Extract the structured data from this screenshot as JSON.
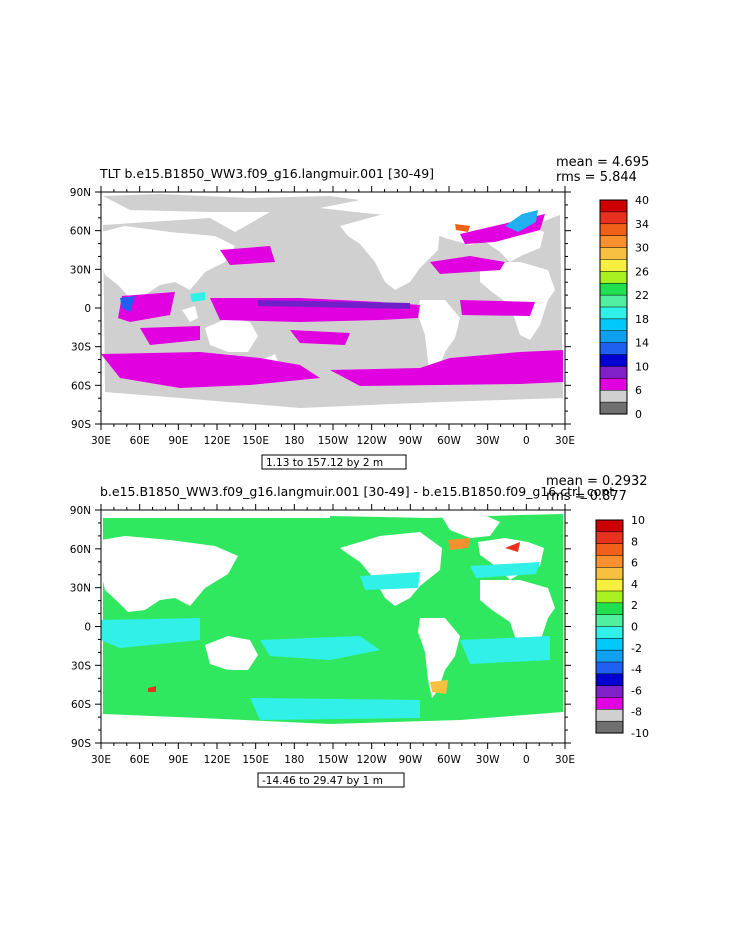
{
  "chart_data": [
    {
      "type": "heatmap",
      "title": "TLT b.e15.B1850_WW3.f09_g16.langmuir.001 [30-49]",
      "stats": {
        "mean": "mean = 4.695",
        "rms": "rms = 5.844"
      },
      "lon_ticks": [
        "30E",
        "60E",
        "90E",
        "120E",
        "150E",
        "180",
        "150W",
        "120W",
        "90W",
        "60W",
        "30W",
        "0",
        "30E"
      ],
      "lat_ticks": [
        "90N",
        "60N",
        "30N",
        "0",
        "30S",
        "60S",
        "90S"
      ],
      "lat_values": [
        90,
        60,
        30,
        0,
        -30,
        -60,
        -90
      ],
      "colorbar": {
        "labels": [
          "40",
          "34",
          "30",
          "26",
          "22",
          "18",
          "14",
          "10",
          "6",
          "0"
        ],
        "colors": [
          "#cc0000",
          "#e83220",
          "#f06018",
          "#f89030",
          "#f8c040",
          "#f8f040",
          "#a8f020",
          "#20e050",
          "#50f0a0",
          "#30f0e8",
          "#00c8f8",
          "#10a0f0",
          "#2060f0",
          "#0000d0",
          "#8020c8",
          "#e000e0",
          "#d0d0d0",
          "#707070"
        ]
      },
      "contour_info": "1.13 to 157.12 by 2 m",
      "land_color": "#ffffff",
      "ice_color": "#d0d0d0"
    },
    {
      "type": "heatmap",
      "title": "b.e15.B1850_WW3.f09_g16.langmuir.001 [30-49] - b.e15.B1850.f09_g16.ctrl_cont",
      "stats": {
        "mean": "mean = 0.2932",
        "rms": "rms = 0.877"
      },
      "lon_ticks": [
        "30E",
        "60E",
        "90E",
        "120E",
        "150E",
        "180",
        "150W",
        "120W",
        "90W",
        "60W",
        "30W",
        "0",
        "30E"
      ],
      "lat_ticks": [
        "90N",
        "60N",
        "30N",
        "0",
        "30S",
        "60S",
        "90S"
      ],
      "lat_values": [
        90,
        60,
        30,
        0,
        -30,
        -60,
        -90
      ],
      "colorbar": {
        "labels": [
          "10",
          "8",
          "6",
          "4",
          "2",
          "0",
          "-2",
          "-4",
          "-6",
          "-8",
          "-10"
        ],
        "colors": [
          "#cc0000",
          "#e83220",
          "#f06018",
          "#f89030",
          "#f8c040",
          "#f8f040",
          "#a8f020",
          "#20e050",
          "#50f0a0",
          "#30f0e8",
          "#00c8f8",
          "#10a0f0",
          "#2060f0",
          "#0000d0",
          "#8020c8",
          "#e000e0",
          "#d0d0d0",
          "#707070"
        ]
      },
      "contour_info": "-14.46 to 29.47 by 1 m",
      "land_color": "#ffffff",
      "ocean_color": "#30e860"
    }
  ]
}
